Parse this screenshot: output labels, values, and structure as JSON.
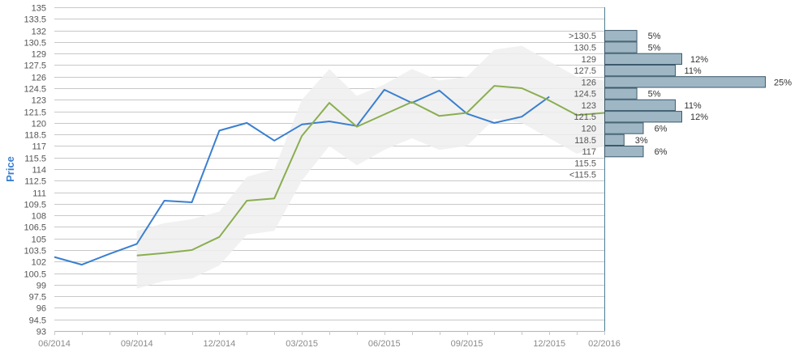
{
  "chart_data": {
    "type": "line",
    "ylabel": "Price",
    "xlabel": "",
    "title": "",
    "ylim": [
      93,
      135
    ],
    "y_step": 1.5,
    "x_ticks": [
      "06/2014",
      "09/2014",
      "12/2014",
      "03/2015",
      "06/2015",
      "09/2015",
      "12/2015",
      "02/2016"
    ],
    "x_months": [
      "06/2014",
      "07/2014",
      "08/2014",
      "09/2014",
      "10/2014",
      "11/2014",
      "12/2014",
      "01/2015",
      "02/2015",
      "03/2015",
      "04/2015",
      "05/2015",
      "06/2015",
      "07/2015",
      "08/2015",
      "09/2015",
      "10/2015",
      "11/2015",
      "12/2015",
      "01/2016",
      "02/2016"
    ],
    "grid": true,
    "series": [
      {
        "color": "#3a7fd0",
        "x": [
          "06/2014",
          "07/2014",
          "08/2014",
          "09/2014",
          "10/2014",
          "11/2014",
          "12/2014",
          "01/2015",
          "02/2015",
          "03/2015",
          "04/2015",
          "05/2015",
          "06/2015",
          "07/2015",
          "08/2015",
          "09/2015",
          "10/2015",
          "11/2015",
          "12/2015"
        ],
        "values": [
          102.6,
          101.6,
          103.0,
          104.3,
          109.9,
          109.7,
          119.0,
          120.0,
          117.7,
          119.8,
          120.2,
          119.6,
          124.3,
          122.6,
          124.2,
          121.2,
          120.0,
          120.8,
          123.4
        ]
      },
      {
        "color": "#8aae50",
        "x": [
          "09/2014",
          "10/2014",
          "11/2014",
          "12/2014",
          "01/2015",
          "02/2015",
          "03/2015",
          "04/2015",
          "05/2015",
          "06/2015",
          "07/2015",
          "08/2015",
          "09/2015",
          "10/2015",
          "11/2015",
          "12/2015",
          "01/2016",
          "02/2016"
        ],
        "values": [
          102.8,
          103.1,
          103.5,
          105.2,
          109.9,
          110.2,
          118.3,
          122.6,
          119.5,
          121.1,
          122.7,
          120.9,
          121.3,
          124.8,
          124.5,
          122.9,
          121.0,
          121.3
        ]
      }
    ],
    "range_band": {
      "color": "#eeeeee",
      "x": [
        "09/2014",
        "10/2014",
        "11/2014",
        "12/2014",
        "01/2015",
        "02/2015",
        "03/2015",
        "04/2015",
        "05/2015",
        "06/2015",
        "07/2015",
        "08/2015",
        "09/2015",
        "10/2015",
        "11/2015",
        "12/2015",
        "01/2016",
        "02/2016"
      ],
      "upper": [
        106.0,
        107.0,
        107.5,
        108.5,
        113.0,
        114.0,
        123.0,
        127.0,
        123.5,
        125.0,
        127.0,
        125.5,
        126.0,
        129.5,
        130.0,
        128.0,
        126.0,
        125.5
      ],
      "lower": [
        98.5,
        99.5,
        99.8,
        101.5,
        105.5,
        106.0,
        112.5,
        117.0,
        114.5,
        116.5,
        118.0,
        116.5,
        117.0,
        120.5,
        120.0,
        118.0,
        116.0,
        117.0
      ]
    },
    "histogram": {
      "color": "#9fb7c5",
      "border": "#3d5a6b",
      "categories": [
        ">130.5",
        "130.5",
        "129",
        "127.5",
        "126",
        "124.5",
        "123",
        "121.5",
        "120",
        "118.5",
        "117",
        "115.5",
        "<115.5"
      ],
      "levels": [
        131.3,
        129.8,
        128.3,
        126.8,
        125.3,
        123.8,
        122.3,
        120.8,
        119.3,
        117.8,
        116.3,
        114.8,
        null
      ],
      "values": [
        5,
        5,
        12,
        11,
        25,
        5,
        11,
        12,
        6,
        3,
        6,
        null,
        null
      ],
      "labels": [
        "5%",
        "5%",
        "12%",
        "11%",
        "25%",
        "5%",
        "11%",
        "12%",
        "6%",
        "3%",
        "6%",
        "",
        ""
      ]
    }
  }
}
